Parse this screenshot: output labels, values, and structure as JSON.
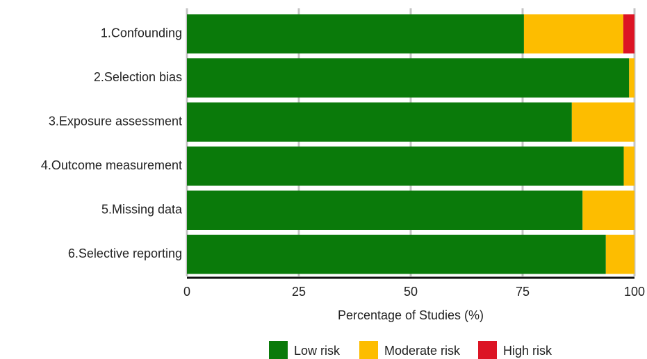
{
  "chart_data": {
    "type": "stacked-barh",
    "categories": [
      "1.Confounding",
      "2.Selection bias",
      "3.Exposure assessment",
      "4.Outcome measurement",
      "5.Missing data",
      "6.Selective reporting"
    ],
    "series": [
      {
        "name": "Low risk",
        "color": "#0a7a0a",
        "values": [
          75.3,
          98.8,
          86,
          97.6,
          88.4,
          93.6
        ]
      },
      {
        "name": "Moderate risk",
        "color": "#fdbd00",
        "values": [
          22.2,
          1.2,
          14,
          2.4,
          11.6,
          6.4
        ]
      },
      {
        "name": "High risk",
        "color": "#dc1424",
        "values": [
          2.5,
          0,
          0,
          0,
          0,
          0
        ]
      }
    ],
    "xlim": [
      0,
      100
    ],
    "xticks": [
      0,
      25,
      50,
      75,
      100
    ],
    "xlabel": "Percentage of Studies (%)",
    "grid": true
  }
}
